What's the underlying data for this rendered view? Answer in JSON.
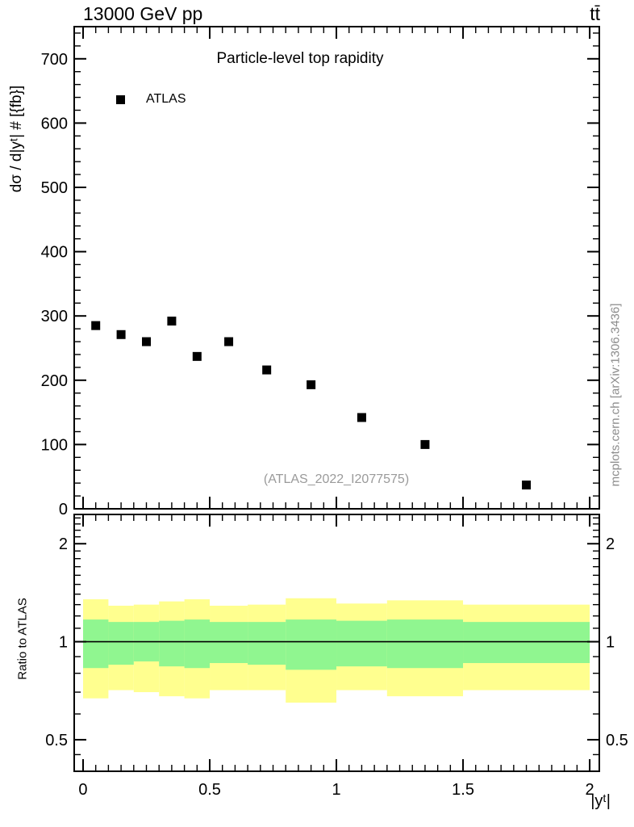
{
  "header": {
    "energy": "13000 GeV pp",
    "process": "tt̄"
  },
  "side_note": "mcplots.cern.ch [arXiv:1306.3436]",
  "watermark": "(ATLAS_2022_I2077575)",
  "main_panel": {
    "title": "Particle-level top rapidity",
    "ylabel": "dσ / d|yᵗ| # [{fb}]",
    "legend": [
      {
        "label": "ATLAS",
        "marker": "filled-black-square"
      }
    ]
  },
  "ratio_panel": {
    "ylabel": "Ratio to ATLAS"
  },
  "xaxis": {
    "label": "|yᵗ|"
  },
  "chart_data": {
    "type": "scatter",
    "title": "Particle-level top rapidity",
    "xlabel": "|y^t|",
    "ylabel": "dsigma / d|y^t| # [{fb}]",
    "xlim": [
      -0.035,
      2.038
    ],
    "main_ylim": [
      0,
      750
    ],
    "x_major_ticks": [
      0,
      0.5,
      1,
      1.5,
      2
    ],
    "x_tick_labels": [
      "0",
      "0.5",
      "1",
      "1.5",
      "2"
    ],
    "x_minor_step": 0.05,
    "y_major_step": 100,
    "y_minor_step": 20,
    "y_major_tick_labels": [
      "0",
      "100",
      "200",
      "300",
      "400",
      "500",
      "600",
      "700"
    ],
    "grid": false,
    "legend_position": "top-left-inside",
    "bin_edges": [
      0,
      0.1,
      0.2,
      0.3,
      0.4,
      0.5,
      0.65,
      0.8,
      1.0,
      1.2,
      1.5,
      2.0
    ],
    "series": [
      {
        "name": "ATLAS",
        "marker": "filled-square",
        "color": "#000000",
        "x": [
          0.05,
          0.15,
          0.25,
          0.35,
          0.45,
          0.575,
          0.725,
          0.9,
          1.1,
          1.35,
          1.75
        ],
        "y": [
          285,
          271,
          260,
          292,
          237,
          260,
          216,
          193,
          142,
          100,
          37
        ]
      }
    ],
    "ratio": {
      "scale": "log",
      "ylim": [
        0.4,
        2.46
      ],
      "major_ticks": [
        0.5,
        1,
        2
      ],
      "major_tick_labels": [
        "0.5",
        "1",
        "2"
      ],
      "minor_ticks": [
        0.45,
        0.6,
        0.7,
        0.8,
        0.9,
        1.1,
        1.2,
        1.3,
        1.4,
        1.5,
        1.6,
        1.7,
        1.8,
        1.9,
        2.1,
        2.2,
        2.3,
        2.4
      ],
      "reference_line": 1,
      "bands": [
        {
          "bin": [
            0,
            0.1
          ],
          "yellow": [
            0.67,
            1.35
          ],
          "green": [
            0.83,
            1.17
          ]
        },
        {
          "bin": [
            0.1,
            0.2
          ],
          "yellow": [
            0.71,
            1.29
          ],
          "green": [
            0.85,
            1.15
          ]
        },
        {
          "bin": [
            0.2,
            0.3
          ],
          "yellow": [
            0.7,
            1.3
          ],
          "green": [
            0.87,
            1.15
          ]
        },
        {
          "bin": [
            0.3,
            0.4
          ],
          "yellow": [
            0.68,
            1.33
          ],
          "green": [
            0.84,
            1.16
          ]
        },
        {
          "bin": [
            0.4,
            0.5
          ],
          "yellow": [
            0.67,
            1.35
          ],
          "green": [
            0.83,
            1.17
          ]
        },
        {
          "bin": [
            0.5,
            0.65
          ],
          "yellow": [
            0.71,
            1.29
          ],
          "green": [
            0.86,
            1.15
          ]
        },
        {
          "bin": [
            0.65,
            0.8
          ],
          "yellow": [
            0.71,
            1.3
          ],
          "green": [
            0.85,
            1.15
          ]
        },
        {
          "bin": [
            0.8,
            1.0
          ],
          "yellow": [
            0.65,
            1.36
          ],
          "green": [
            0.82,
            1.17
          ]
        },
        {
          "bin": [
            1.0,
            1.2
          ],
          "yellow": [
            0.71,
            1.31
          ],
          "green": [
            0.84,
            1.16
          ]
        },
        {
          "bin": [
            1.2,
            1.5
          ],
          "yellow": [
            0.68,
            1.34
          ],
          "green": [
            0.83,
            1.17
          ]
        },
        {
          "bin": [
            1.5,
            2.0
          ],
          "yellow": [
            0.71,
            1.3
          ],
          "green": [
            0.86,
            1.15
          ]
        }
      ]
    },
    "colors": {
      "yellow_band": "#ffff8f",
      "green_band": "#90f690",
      "marker": "#000000",
      "frame": "#000000",
      "watermark": "#9a9a9a",
      "side_note": "#8c8c8c"
    }
  }
}
